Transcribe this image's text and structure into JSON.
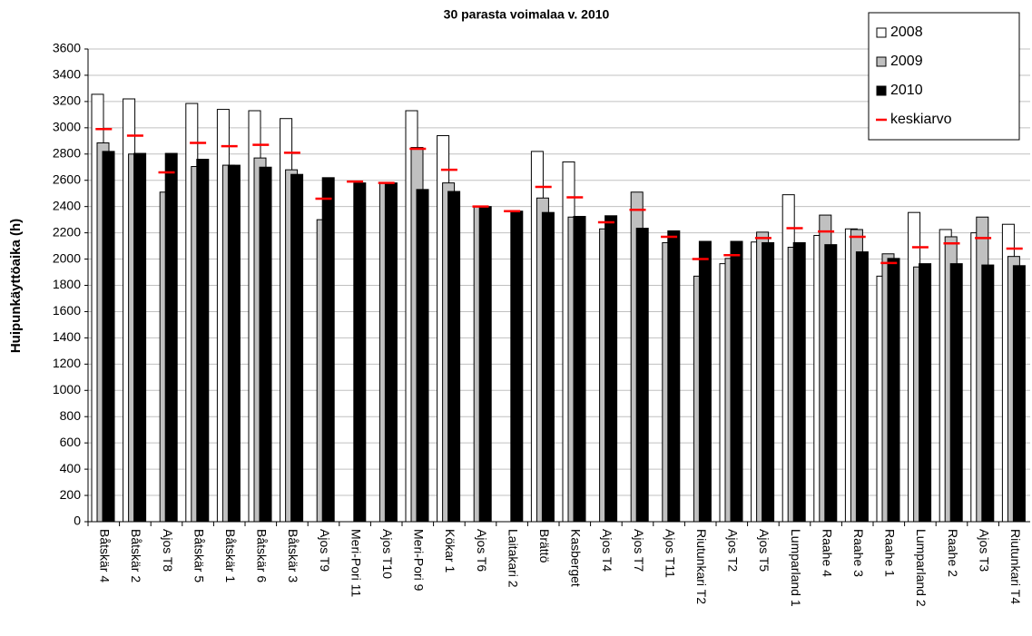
{
  "chart_data": {
    "type": "bar",
    "title": "30 parasta voimalaa v. 2010",
    "y_label": "Huipunkäyttöaika (h)",
    "categories": [
      "Båtskär 4",
      "Båtskär 2",
      "Ajos T8",
      "Båtskär 5",
      "Båtskär 1",
      "Båtskär 6",
      "Båtskär 3",
      "Ajos T9",
      "Meri-Pori 11",
      "Ajos T10",
      "Meri-Pori 9",
      "Kökar 1",
      "Ajos T6",
      "Laitakari 2",
      "Brättö",
      "Kasberget",
      "Ajos T4",
      "Ajos T7",
      "Ajos T11",
      "Riutunkari T2",
      "Ajos T2",
      "Ajos T5",
      "Lumparland 1",
      "Raahe 4",
      "Raahe 3",
      "Raahe 1",
      "Lumparland 2",
      "Raahe 2",
      "Ajos T3",
      "Riutunkari T4"
    ],
    "series": [
      {
        "name": "2008",
        "color": "#ffffff",
        "values": [
          3255,
          3220,
          null,
          3185,
          3140,
          3130,
          3070,
          null,
          null,
          null,
          3130,
          2940,
          null,
          null,
          2820,
          2740,
          null,
          null,
          null,
          null,
          1965,
          2130,
          2490,
          2180,
          2230,
          1870,
          2355,
          2225,
          2200,
          2265
        ]
      },
      {
        "name": "2009",
        "color": "#c0c0c0",
        "values": [
          2885,
          2800,
          2510,
          2705,
          2715,
          2770,
          2680,
          2300,
          null,
          2580,
          2850,
          2580,
          2400,
          null,
          2465,
          2320,
          2230,
          2510,
          2125,
          1870,
          2005,
          2205,
          2090,
          2335,
          2225,
          2040,
          1940,
          2170,
          2320,
          2020
        ]
      },
      {
        "name": "2010",
        "color": "#000000",
        "values": [
          2820,
          2805,
          2805,
          2760,
          2715,
          2700,
          2645,
          2620,
          2580,
          2580,
          2530,
          2515,
          2400,
          2365,
          2355,
          2325,
          2330,
          2235,
          2215,
          2135,
          2135,
          2125,
          2125,
          2110,
          2055,
          2005,
          1965,
          1965,
          1955,
          1950
        ]
      },
      {
        "name": "keskiarvo",
        "color": "#ff0000",
        "mark": "dash",
        "values": [
          2990,
          2940,
          2660,
          2885,
          2860,
          2870,
          2810,
          2460,
          2590,
          2580,
          2840,
          2680,
          2400,
          2365,
          2550,
          2470,
          2280,
          2375,
          2170,
          2000,
          2030,
          2160,
          2235,
          2210,
          2170,
          1970,
          2090,
          2120,
          2160,
          2080
        ]
      }
    ],
    "ylim": [
      0,
      3600
    ],
    "yticks": [
      0,
      200,
      400,
      600,
      800,
      1000,
      1200,
      1400,
      1600,
      1800,
      2000,
      2200,
      2400,
      2600,
      2800,
      3000,
      3200,
      3400,
      3600
    ],
    "grid": true,
    "legend": "top-right"
  }
}
